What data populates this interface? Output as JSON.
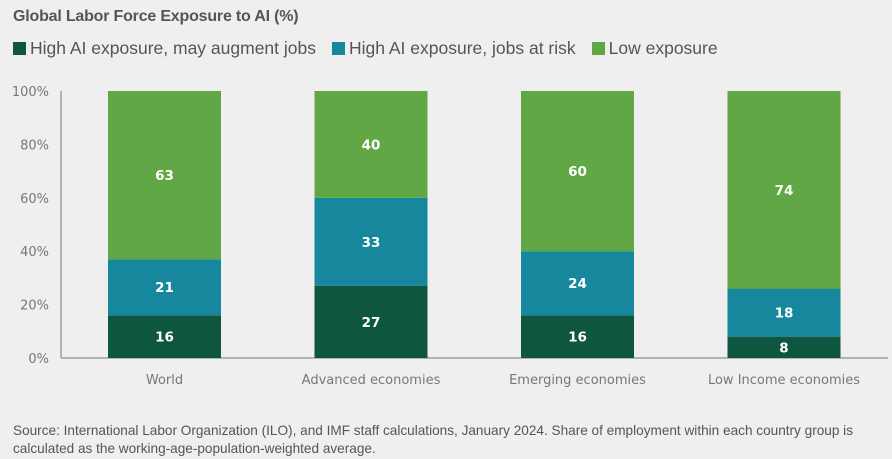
{
  "chart_data": {
    "type": "bar",
    "stacked": true,
    "title": "Global Labor Force Exposure to AI (%)",
    "xlabel": "",
    "ylabel": "",
    "ylim": [
      0,
      100
    ],
    "yticks": [
      "0%",
      "20%",
      "40%",
      "60%",
      "80%",
      "100%"
    ],
    "ytick_values": [
      0,
      20,
      40,
      60,
      80,
      100
    ],
    "grid": false,
    "legend_position": "top-left",
    "categories": [
      "World",
      "Advanced economies",
      "Emerging economies",
      "Low Income economies"
    ],
    "series": [
      {
        "name": "High AI exposure, may augment jobs",
        "color": "#0f5640",
        "values": [
          16,
          27,
          16,
          8
        ]
      },
      {
        "name": "High AI exposure, jobs at risk",
        "color": "#16879c",
        "values": [
          21,
          33,
          24,
          18
        ]
      },
      {
        "name": "Low exposure",
        "color": "#62a745",
        "values": [
          63,
          40,
          60,
          74
        ]
      }
    ]
  },
  "source_note": "Source: International Labor Organization (ILO), and IMF staff calculations, January 2024. Share of employment within each country group is calculated as the working-age-population-weighted average."
}
